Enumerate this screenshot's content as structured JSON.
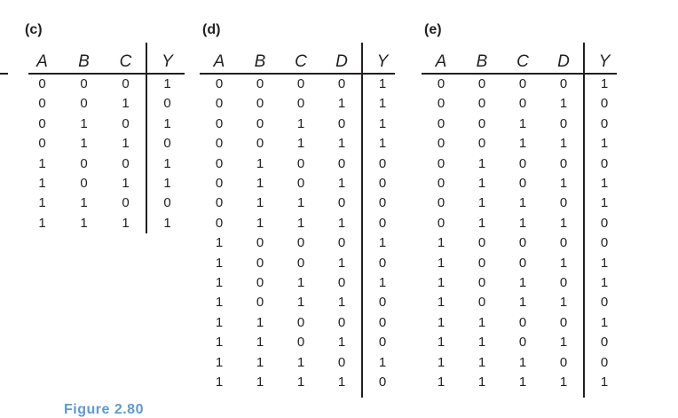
{
  "figure": {
    "caption": "Figure 2.80",
    "caption_color": "#5b9bd5",
    "ink_color": "#231f20"
  },
  "tables": [
    {
      "label": "(c)",
      "columns": [
        "A",
        "B",
        "C",
        "Y"
      ],
      "inputs": [
        "A",
        "B",
        "C"
      ],
      "output": "Y",
      "rows": [
        [
          "0",
          "0",
          "0",
          "1"
        ],
        [
          "0",
          "0",
          "1",
          "0"
        ],
        [
          "0",
          "1",
          "0",
          "1"
        ],
        [
          "0",
          "1",
          "1",
          "0"
        ],
        [
          "1",
          "0",
          "0",
          "1"
        ],
        [
          "1",
          "0",
          "1",
          "1"
        ],
        [
          "1",
          "1",
          "0",
          "0"
        ],
        [
          "1",
          "1",
          "1",
          "1"
        ]
      ]
    },
    {
      "label": "(d)",
      "columns": [
        "A",
        "B",
        "C",
        "D",
        "Y"
      ],
      "inputs": [
        "A",
        "B",
        "C",
        "D"
      ],
      "output": "Y",
      "rows": [
        [
          "0",
          "0",
          "0",
          "0",
          "1"
        ],
        [
          "0",
          "0",
          "0",
          "1",
          "1"
        ],
        [
          "0",
          "0",
          "1",
          "0",
          "1"
        ],
        [
          "0",
          "0",
          "1",
          "1",
          "1"
        ],
        [
          "0",
          "1",
          "0",
          "0",
          "0"
        ],
        [
          "0",
          "1",
          "0",
          "1",
          "0"
        ],
        [
          "0",
          "1",
          "1",
          "0",
          "0"
        ],
        [
          "0",
          "1",
          "1",
          "1",
          "0"
        ],
        [
          "1",
          "0",
          "0",
          "0",
          "1"
        ],
        [
          "1",
          "0",
          "0",
          "1",
          "0"
        ],
        [
          "1",
          "0",
          "1",
          "0",
          "1"
        ],
        [
          "1",
          "0",
          "1",
          "1",
          "0"
        ],
        [
          "1",
          "1",
          "0",
          "0",
          "0"
        ],
        [
          "1",
          "1",
          "0",
          "1",
          "0"
        ],
        [
          "1",
          "1",
          "1",
          "0",
          "1"
        ],
        [
          "1",
          "1",
          "1",
          "1",
          "0"
        ]
      ]
    },
    {
      "label": "(e)",
      "columns": [
        "A",
        "B",
        "C",
        "D",
        "Y"
      ],
      "inputs": [
        "A",
        "B",
        "C",
        "D"
      ],
      "output": "Y",
      "rows": [
        [
          "0",
          "0",
          "0",
          "0",
          "1"
        ],
        [
          "0",
          "0",
          "0",
          "1",
          "0"
        ],
        [
          "0",
          "0",
          "1",
          "0",
          "0"
        ],
        [
          "0",
          "0",
          "1",
          "1",
          "1"
        ],
        [
          "0",
          "1",
          "0",
          "0",
          "0"
        ],
        [
          "0",
          "1",
          "0",
          "1",
          "1"
        ],
        [
          "0",
          "1",
          "1",
          "0",
          "1"
        ],
        [
          "0",
          "1",
          "1",
          "1",
          "0"
        ],
        [
          "1",
          "0",
          "0",
          "0",
          "0"
        ],
        [
          "1",
          "0",
          "0",
          "1",
          "1"
        ],
        [
          "1",
          "0",
          "1",
          "0",
          "1"
        ],
        [
          "1",
          "0",
          "1",
          "1",
          "0"
        ],
        [
          "1",
          "1",
          "0",
          "0",
          "1"
        ],
        [
          "1",
          "1",
          "0",
          "1",
          "0"
        ],
        [
          "1",
          "1",
          "1",
          "0",
          "0"
        ],
        [
          "1",
          "1",
          "1",
          "1",
          "1"
        ]
      ]
    }
  ]
}
